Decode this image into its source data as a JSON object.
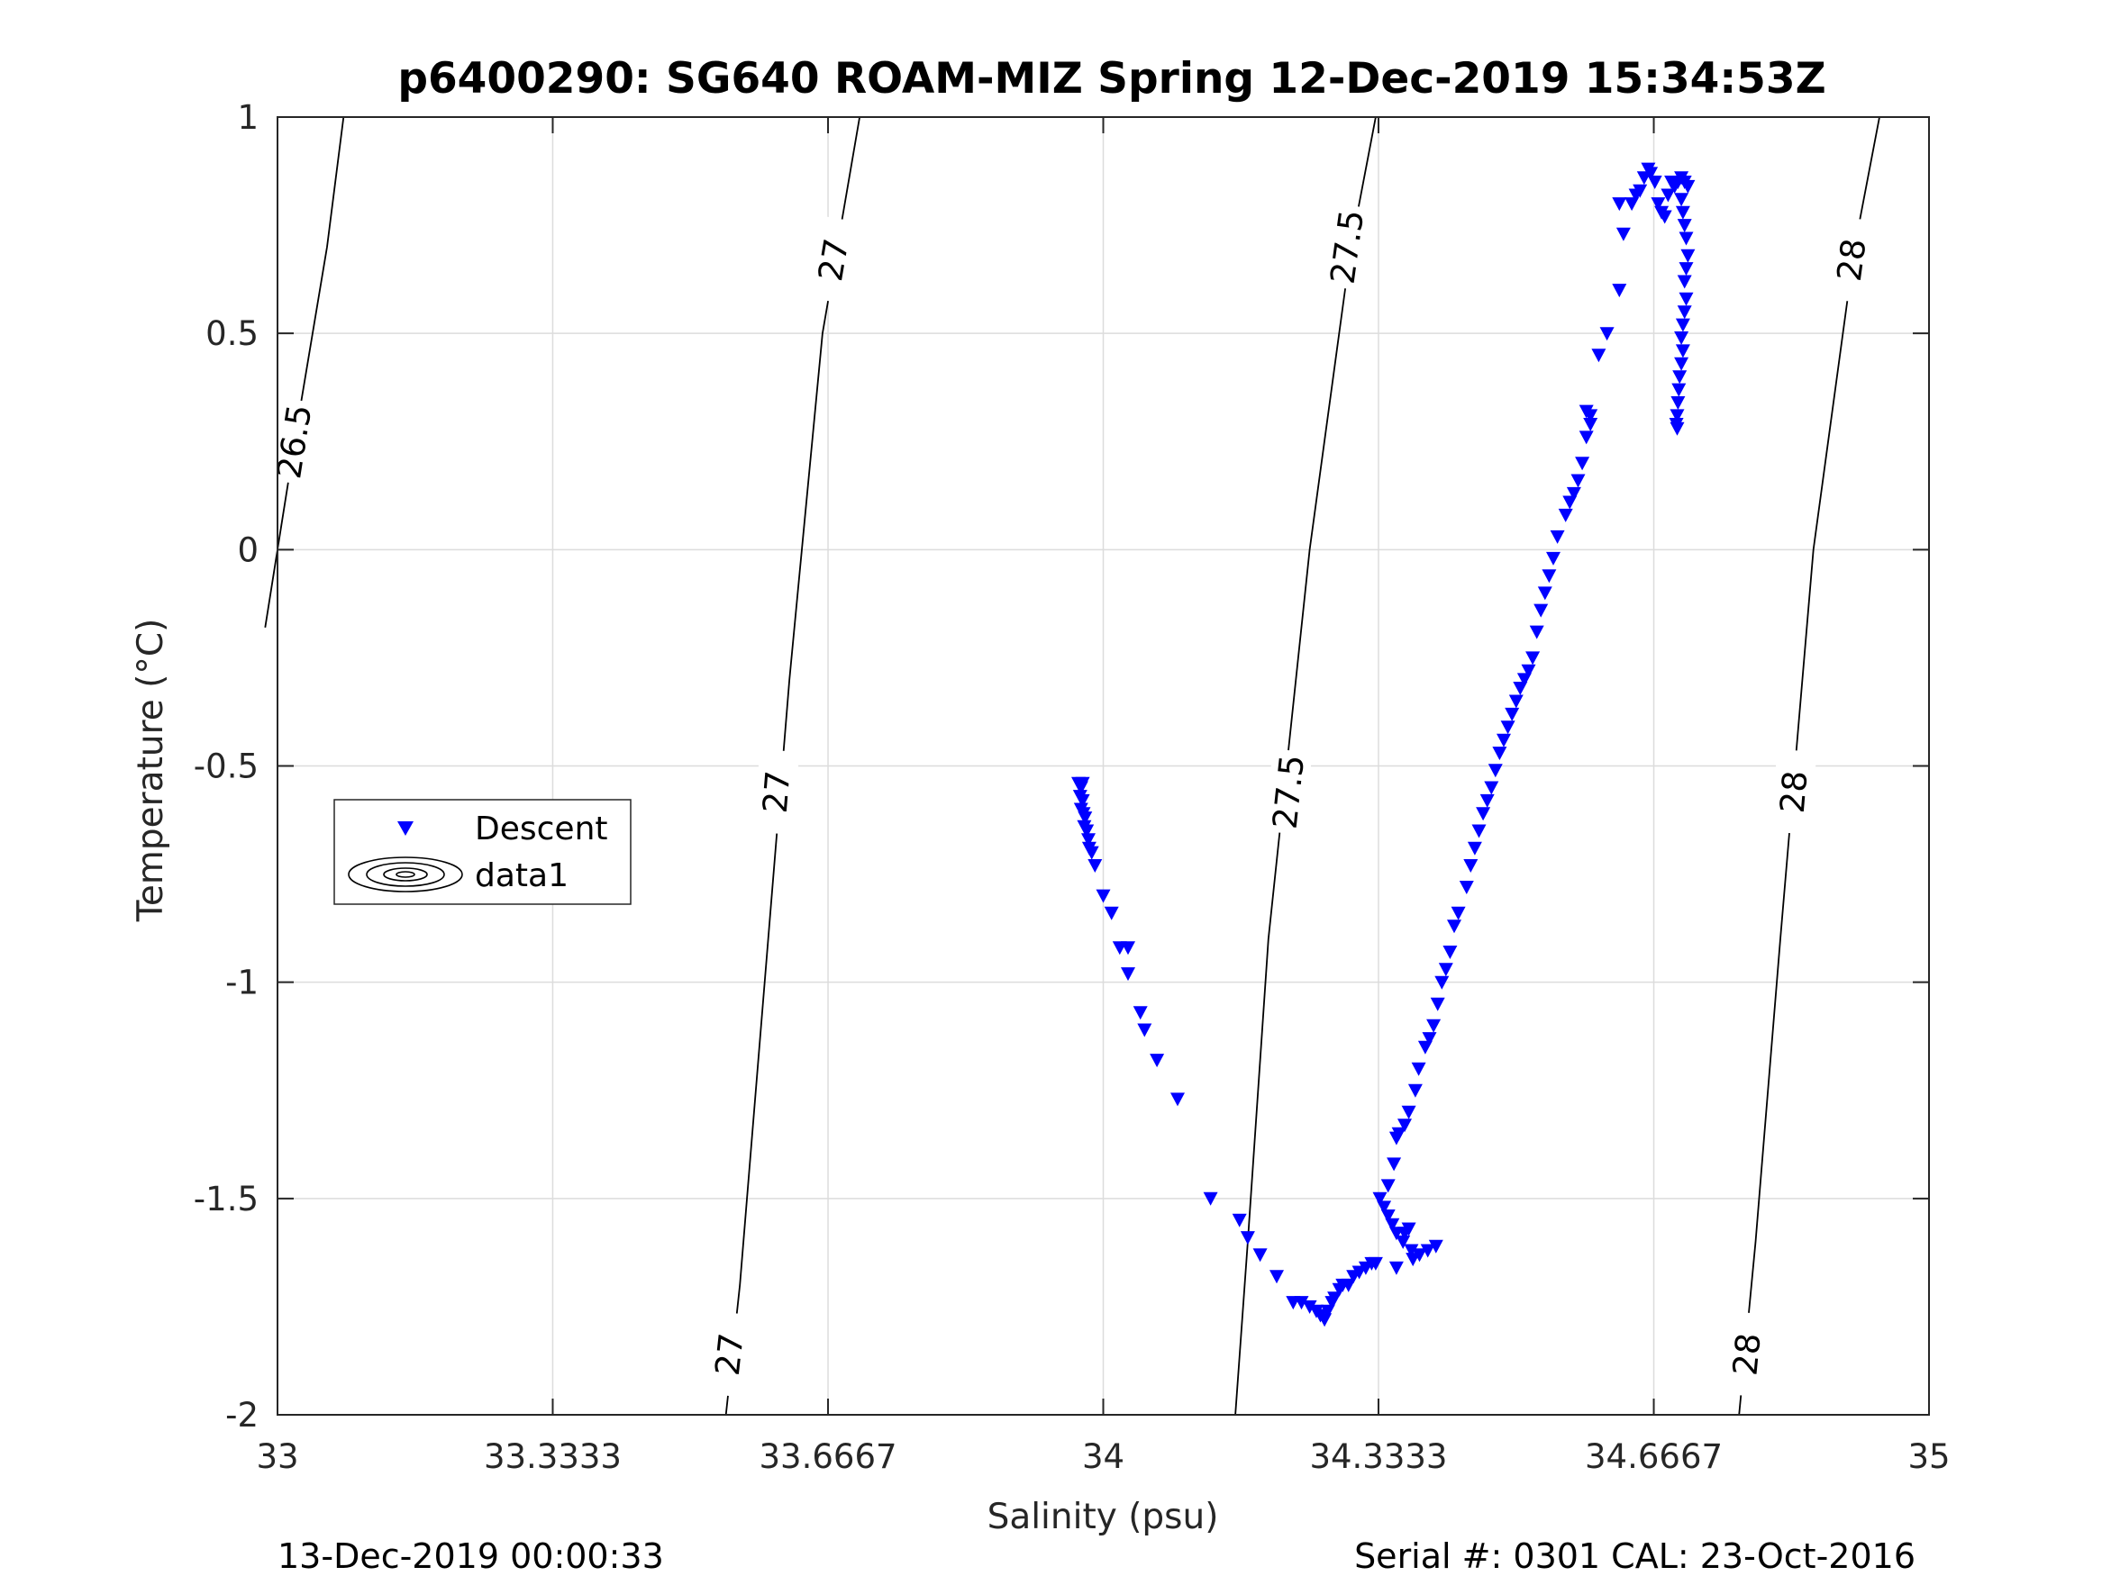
{
  "footer": {
    "left": "13-Dec-2019 00:00:33",
    "right": "Serial #: 0301  CAL: 23-Oct-2016"
  },
  "colors": {
    "descent": "#0000ff",
    "contour": "#000000",
    "grid": "#dcdcdc",
    "axis": "#262626"
  },
  "chart_data": {
    "type": "scatter",
    "title": "p6400290: SG640 ROAM-MIZ Spring 12-Dec-2019 15:34:53Z",
    "xlabel": "Salinity (psu)",
    "ylabel": "Temperature (°C)",
    "xlim": [
      33,
      35
    ],
    "ylim": [
      -2,
      1
    ],
    "xticks": [
      33,
      33.3333,
      33.6667,
      34,
      34.3333,
      34.6667,
      35
    ],
    "xtick_labels": [
      "33",
      "33.3333",
      "33.6667",
      "34",
      "34.3333",
      "34.6667",
      "35"
    ],
    "yticks": [
      -2,
      -1.5,
      -1,
      -0.5,
      0,
      0.5,
      1
    ],
    "ytick_labels": [
      "-2",
      "-1.5",
      "-1",
      "-0.5",
      "0",
      "0.5",
      "1"
    ],
    "grid": true,
    "legend": {
      "placement": "middle-left",
      "entries": [
        "Descent",
        "data1"
      ]
    },
    "series": [
      {
        "name": "Descent",
        "marker": "triangle-down",
        "color": "#0000ff",
        "points": [
          [
            33.97,
            -0.54
          ],
          [
            33.973,
            -0.55
          ],
          [
            33.975,
            -0.54
          ],
          [
            33.972,
            -0.57
          ],
          [
            33.975,
            -0.58
          ],
          [
            33.973,
            -0.6
          ],
          [
            33.976,
            -0.61
          ],
          [
            33.978,
            -0.62
          ],
          [
            33.977,
            -0.64
          ],
          [
            33.98,
            -0.65
          ],
          [
            33.982,
            -0.67
          ],
          [
            33.983,
            -0.69
          ],
          [
            33.986,
            -0.7
          ],
          [
            33.99,
            -0.73
          ],
          [
            34.0,
            -0.8
          ],
          [
            34.01,
            -0.84
          ],
          [
            34.02,
            -0.92
          ],
          [
            34.03,
            -0.92
          ],
          [
            34.03,
            -0.98
          ],
          [
            34.045,
            -1.07
          ],
          [
            34.05,
            -1.11
          ],
          [
            34.065,
            -1.18
          ],
          [
            34.09,
            -1.27
          ],
          [
            34.13,
            -1.5
          ],
          [
            34.165,
            -1.55
          ],
          [
            34.175,
            -1.59
          ],
          [
            34.19,
            -1.63
          ],
          [
            34.21,
            -1.68
          ],
          [
            34.23,
            -1.74
          ],
          [
            34.24,
            -1.74
          ],
          [
            34.25,
            -1.75
          ],
          [
            34.258,
            -1.76
          ],
          [
            34.263,
            -1.77
          ],
          [
            34.268,
            -1.78
          ],
          [
            34.272,
            -1.76
          ],
          [
            34.277,
            -1.74
          ],
          [
            34.28,
            -1.73
          ],
          [
            34.286,
            -1.71
          ],
          [
            34.29,
            -1.7
          ],
          [
            34.297,
            -1.7
          ],
          [
            34.303,
            -1.68
          ],
          [
            34.31,
            -1.67
          ],
          [
            34.318,
            -1.66
          ],
          [
            34.325,
            -1.65
          ],
          [
            34.33,
            -1.65
          ],
          [
            34.335,
            -1.5
          ],
          [
            34.34,
            -1.52
          ],
          [
            34.345,
            -1.54
          ],
          [
            34.35,
            -1.56
          ],
          [
            34.355,
            -1.58
          ],
          [
            34.363,
            -1.6
          ],
          [
            34.373,
            -1.62
          ],
          [
            34.383,
            -1.63
          ],
          [
            34.393,
            -1.62
          ],
          [
            34.403,
            -1.61
          ],
          [
            34.365,
            -1.58
          ],
          [
            34.37,
            -1.57
          ],
          [
            34.375,
            -1.64
          ],
          [
            34.355,
            -1.66
          ],
          [
            34.345,
            -1.47
          ],
          [
            34.352,
            -1.42
          ],
          [
            34.355,
            -1.36
          ],
          [
            34.358,
            -1.35
          ],
          [
            34.365,
            -1.33
          ],
          [
            34.37,
            -1.3
          ],
          [
            34.378,
            -1.25
          ],
          [
            34.382,
            -1.2
          ],
          [
            34.39,
            -1.15
          ],
          [
            34.395,
            -1.13
          ],
          [
            34.4,
            -1.1
          ],
          [
            34.405,
            -1.05
          ],
          [
            34.41,
            -1.0
          ],
          [
            34.415,
            -0.97
          ],
          [
            34.42,
            -0.93
          ],
          [
            34.425,
            -0.87
          ],
          [
            34.43,
            -0.84
          ],
          [
            34.44,
            -0.78
          ],
          [
            34.445,
            -0.73
          ],
          [
            34.45,
            -0.69
          ],
          [
            34.455,
            -0.65
          ],
          [
            34.46,
            -0.61
          ],
          [
            34.465,
            -0.58
          ],
          [
            34.47,
            -0.55
          ],
          [
            34.475,
            -0.51
          ],
          [
            34.48,
            -0.47
          ],
          [
            34.485,
            -0.44
          ],
          [
            34.49,
            -0.41
          ],
          [
            34.495,
            -0.38
          ],
          [
            34.5,
            -0.35
          ],
          [
            34.505,
            -0.32
          ],
          [
            34.51,
            -0.3
          ],
          [
            34.515,
            -0.28
          ],
          [
            34.52,
            -0.25
          ],
          [
            34.525,
            -0.19
          ],
          [
            34.53,
            -0.14
          ],
          [
            34.535,
            -0.1
          ],
          [
            34.54,
            -0.06
          ],
          [
            34.545,
            -0.02
          ],
          [
            34.55,
            0.03
          ],
          [
            34.56,
            0.08
          ],
          [
            34.565,
            0.11
          ],
          [
            34.57,
            0.13
          ],
          [
            34.575,
            0.16
          ],
          [
            34.58,
            0.2
          ],
          [
            34.585,
            0.26
          ],
          [
            34.59,
            0.29
          ],
          [
            34.59,
            0.31
          ],
          [
            34.585,
            0.32
          ],
          [
            34.6,
            0.45
          ],
          [
            34.61,
            0.5
          ],
          [
            34.625,
            0.6
          ],
          [
            34.63,
            0.73
          ],
          [
            34.625,
            0.8
          ],
          [
            34.64,
            0.8
          ],
          [
            34.645,
            0.82
          ],
          [
            34.65,
            0.83
          ],
          [
            34.655,
            0.86
          ],
          [
            34.66,
            0.88
          ],
          [
            34.663,
            0.87
          ],
          [
            34.668,
            0.85
          ],
          [
            34.672,
            0.8
          ],
          [
            34.676,
            0.78
          ],
          [
            34.68,
            0.77
          ],
          [
            34.684,
            0.82
          ],
          [
            34.688,
            0.85
          ],
          [
            34.692,
            0.84
          ],
          [
            34.696,
            0.85
          ],
          [
            34.7,
            0.86
          ],
          [
            34.704,
            0.85
          ],
          [
            34.708,
            0.84
          ],
          [
            34.7,
            0.81
          ],
          [
            34.702,
            0.78
          ],
          [
            34.704,
            0.75
          ],
          [
            34.706,
            0.72
          ],
          [
            34.708,
            0.68
          ],
          [
            34.706,
            0.65
          ],
          [
            34.704,
            0.62
          ],
          [
            34.706,
            0.58
          ],
          [
            34.704,
            0.55
          ],
          [
            34.702,
            0.52
          ],
          [
            34.7,
            0.49
          ],
          [
            34.702,
            0.46
          ],
          [
            34.7,
            0.43
          ],
          [
            34.698,
            0.4
          ],
          [
            34.697,
            0.37
          ],
          [
            34.696,
            0.34
          ],
          [
            34.695,
            0.31
          ],
          [
            34.694,
            0.29
          ],
          [
            34.695,
            0.28
          ]
        ]
      }
    ],
    "contours": [
      {
        "level": "26.5",
        "path": [
          [
            32.985,
            -0.18
          ],
          [
            33.0,
            -0.0
          ],
          [
            33.025,
            0.3
          ],
          [
            33.06,
            0.7
          ],
          [
            33.08,
            1.0
          ]
        ],
        "labels": [
          [
            33.02,
            0.25
          ]
        ]
      },
      {
        "level": "27",
        "path": [
          [
            33.543,
            -2.0
          ],
          [
            33.56,
            -1.7
          ],
          [
            33.59,
            -1.0
          ],
          [
            33.62,
            -0.3
          ],
          [
            33.66,
            0.5
          ],
          [
            33.705,
            1.0
          ]
        ],
        "labels": [
          [
            33.547,
            -1.86
          ],
          [
            33.604,
            -0.56
          ],
          [
            33.673,
            0.67
          ]
        ]
      },
      {
        "level": "27.5",
        "path": [
          [
            34.16,
            -2.0
          ],
          [
            34.175,
            -1.6
          ],
          [
            34.2,
            -0.9
          ],
          [
            34.25,
            0.0
          ],
          [
            34.3,
            0.7
          ],
          [
            34.33,
            1.0
          ]
        ],
        "labels": [
          [
            34.224,
            -0.56
          ],
          [
            34.295,
            0.7
          ]
        ]
      },
      {
        "level": "28",
        "path": [
          [
            34.77,
            -2.0
          ],
          [
            34.79,
            -1.6
          ],
          [
            34.82,
            -0.9
          ],
          [
            34.86,
            0.0
          ],
          [
            34.91,
            0.7
          ],
          [
            34.94,
            1.0
          ]
        ],
        "labels": [
          [
            34.779,
            -1.86
          ],
          [
            34.836,
            -0.56
          ],
          [
            34.906,
            0.67
          ]
        ]
      }
    ]
  }
}
